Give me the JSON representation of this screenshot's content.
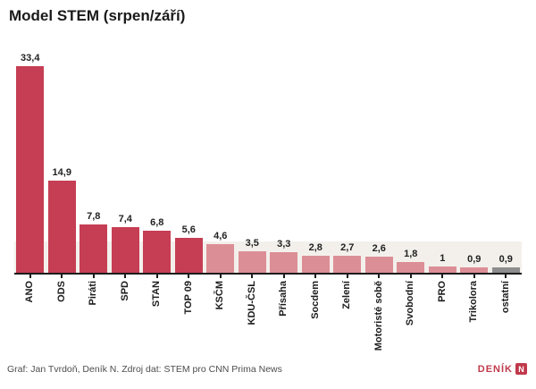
{
  "title": "Model STEM (srpen/září)",
  "footer": {
    "credit": "Graf: Jan Tvrdoň, Deník N. Zdroj dat: STEM pro CNN Prima News",
    "logo_text": "DENÍK",
    "logo_box_letter": "N"
  },
  "chart_data": {
    "type": "bar",
    "title": "Model STEM (srpen/září)",
    "categories": [
      "ANO",
      "ODS",
      "Piráti",
      "SPD",
      "STAN",
      "TOP 09",
      "KSČM",
      "KDU-ČSL",
      "Přísaha",
      "Socdem",
      "Zelení",
      "Motoristé sobě",
      "Svobodní",
      "PRO",
      "Trikolora",
      "ostatní"
    ],
    "values": [
      33.4,
      14.9,
      7.8,
      7.4,
      6.8,
      5.6,
      4.6,
      3.5,
      3.3,
      2.8,
      2.7,
      2.6,
      1.8,
      1,
      0.9,
      0.9
    ],
    "value_labels": [
      "33,4",
      "14,9",
      "7,8",
      "7,4",
      "6,8",
      "5,6",
      "4,6",
      "3,5",
      "3,3",
      "2,8",
      "2,7",
      "2,6",
      "1,8",
      "1",
      "0,9",
      "0,9"
    ],
    "xlabel": "",
    "ylabel": "",
    "ylim": [
      0,
      35.7
    ],
    "grid": false,
    "legend": "none",
    "x_tick_rotation": 90,
    "decimal_separator": ",",
    "threshold_band": {
      "from": 0,
      "to": 5,
      "color": "#f3f0ec",
      "meaning": "5% electoral threshold zone"
    },
    "colors": {
      "above_threshold": "#c53e54",
      "below_threshold": "#dc8e96",
      "other_category": "#8d8d8d",
      "axis": "#1c1c1c",
      "value_label": "#222222",
      "band": "#f3f0ec",
      "logo_red": "#c0394b"
    },
    "bar_colors": [
      "#c53e54",
      "#c53e54",
      "#c53e54",
      "#c53e54",
      "#c53e54",
      "#c53e54",
      "#dc8e96",
      "#dc8e96",
      "#dc8e96",
      "#dc8e96",
      "#dc8e96",
      "#dc8e96",
      "#dc8e96",
      "#dc8e96",
      "#dc8e96",
      "#8d8d8d"
    ]
  }
}
